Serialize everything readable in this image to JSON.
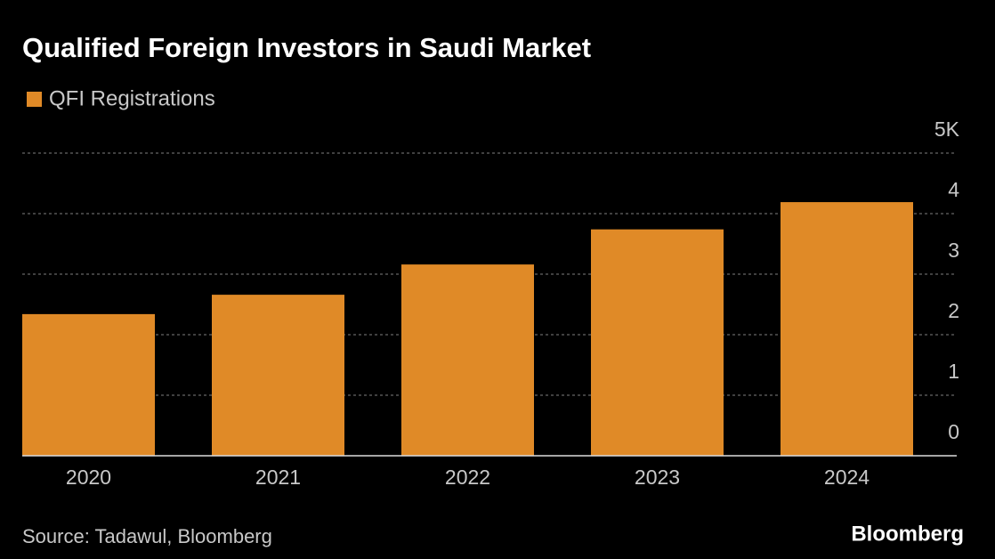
{
  "chart_data": {
    "type": "bar",
    "title": "Qualified Foreign Investors in Saudi Market",
    "categories": [
      "2020",
      "2021",
      "2022",
      "2023",
      "2024"
    ],
    "series": [
      {
        "name": "QFI Registrations",
        "color": "#e08a27",
        "values": [
          2.34,
          2.66,
          3.16,
          3.74,
          4.19
        ]
      }
    ],
    "ylim": [
      0,
      5
    ],
    "yticks": [
      0,
      1,
      2,
      3,
      4,
      {
        "value": 5,
        "label": "5K"
      }
    ],
    "grid": true,
    "source": "Source: Tadawul, Bloomberg",
    "brand": "Bloomberg"
  }
}
